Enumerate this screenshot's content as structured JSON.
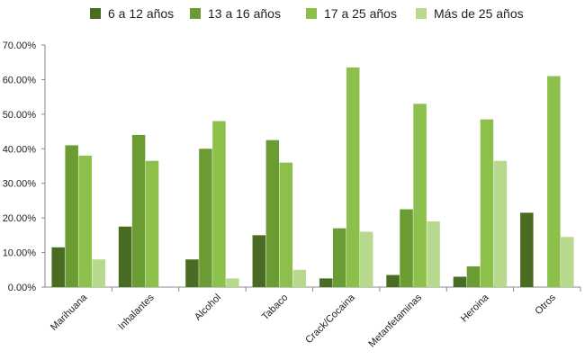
{
  "chart_data": {
    "type": "bar",
    "categories": [
      "Marihuana",
      "Inhalantes",
      "Alcohol",
      "Tabaco",
      "Crack/Cocaina",
      "Metanfetaminas",
      "Heroina",
      "Otros"
    ],
    "series": [
      {
        "name": "6 a 12 años",
        "color": "#4a6b22",
        "values": [
          11.5,
          17.5,
          8.0,
          15.0,
          2.5,
          3.5,
          3.0,
          21.5
        ]
      },
      {
        "name": "13 a 16 años",
        "color": "#6b9b33",
        "values": [
          41.0,
          44.0,
          40.0,
          42.5,
          17.0,
          22.5,
          6.0,
          0
        ]
      },
      {
        "name": "17 a 25 años",
        "color": "#8dc04a",
        "values": [
          38.0,
          36.5,
          48.0,
          36.0,
          63.5,
          53.0,
          48.5,
          61.0
        ]
      },
      {
        "name": "Más de 25 años",
        "color": "#b7d98d",
        "values": [
          8.0,
          0,
          2.5,
          5.0,
          16.0,
          19.0,
          36.5,
          14.5
        ]
      }
    ],
    "y_ticks": [
      "0.00%",
      "10.00%",
      "20.00%",
      "30.00%",
      "40.00%",
      "50.00%",
      "60.00%",
      "70.00%"
    ],
    "ylim": [
      0,
      70
    ],
    "legend_position": "top",
    "grid": false
  }
}
